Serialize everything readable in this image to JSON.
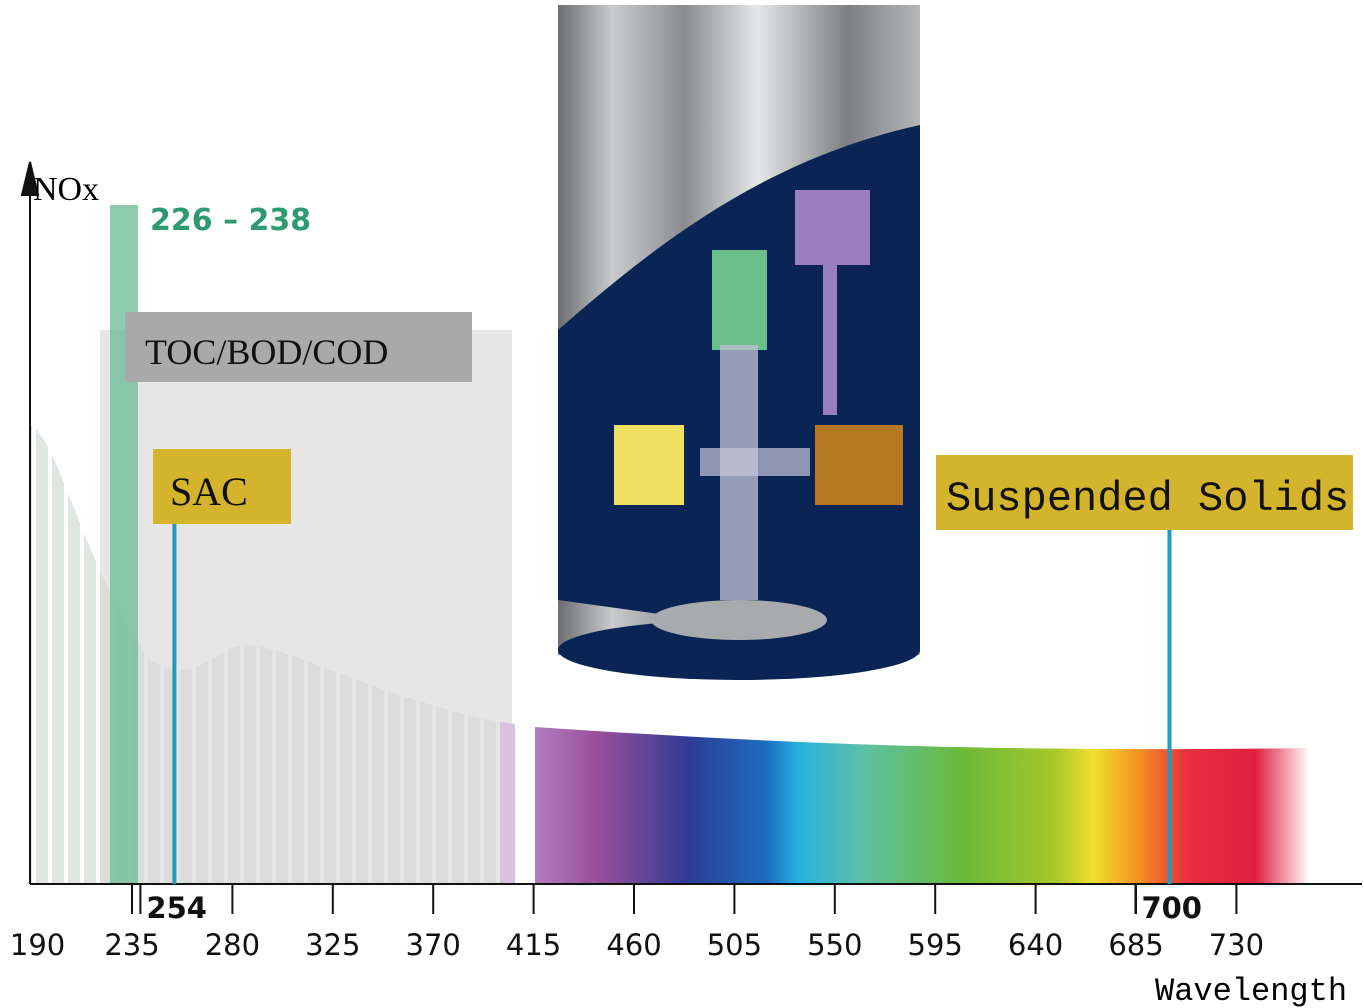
{
  "axis": {
    "y_label": "NOx",
    "x_label": "Wavelength",
    "ticks": [
      190,
      235,
      280,
      325,
      370,
      415,
      460,
      505,
      550,
      595,
      640,
      685,
      730
    ]
  },
  "bands": {
    "nox": "226 – 238",
    "toc": "TOC/BOD/COD",
    "sac": {
      "label": "SAC",
      "wavelength": "254"
    },
    "solids": {
      "label": "Suspended Solids",
      "wavelength": "700"
    }
  }
}
